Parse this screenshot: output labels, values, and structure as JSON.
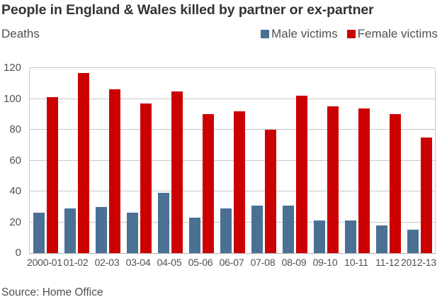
{
  "header": {
    "title": "People in England & Wales killed by partner or ex-partner",
    "y_unit_label": "Deaths"
  },
  "legend": [
    {
      "label": "Male victims",
      "color": "#4a7194"
    },
    {
      "label": "Female victims",
      "color": "#cc0000"
    }
  ],
  "footer": {
    "source": "Source: Home Office"
  },
  "chart_data": {
    "type": "bar",
    "title": "People in England & Wales killed by partner or ex-partner",
    "xlabel": "",
    "ylabel": "Deaths",
    "ylim": [
      0,
      120
    ],
    "yticks": [
      0,
      20,
      40,
      60,
      80,
      100,
      120
    ],
    "grid": true,
    "legend_position": "top-right",
    "categories": [
      "2000-01",
      "01-02",
      "02-03",
      "03-04",
      "04-05",
      "05-06",
      "06-07",
      "07-08",
      "08-09",
      "09-10",
      "10-11",
      "11-12",
      "2012-13"
    ],
    "series": [
      {
        "name": "Male victims",
        "color": "#4a7194",
        "values": [
          26,
          29,
          30,
          26,
          39,
          23,
          29,
          31,
          31,
          21,
          21,
          18,
          15
        ]
      },
      {
        "name": "Female victims",
        "color": "#cc0000",
        "values": [
          101,
          117,
          106,
          97,
          105,
          90,
          92,
          80,
          102,
          95,
          94,
          90,
          75
        ]
      }
    ]
  }
}
